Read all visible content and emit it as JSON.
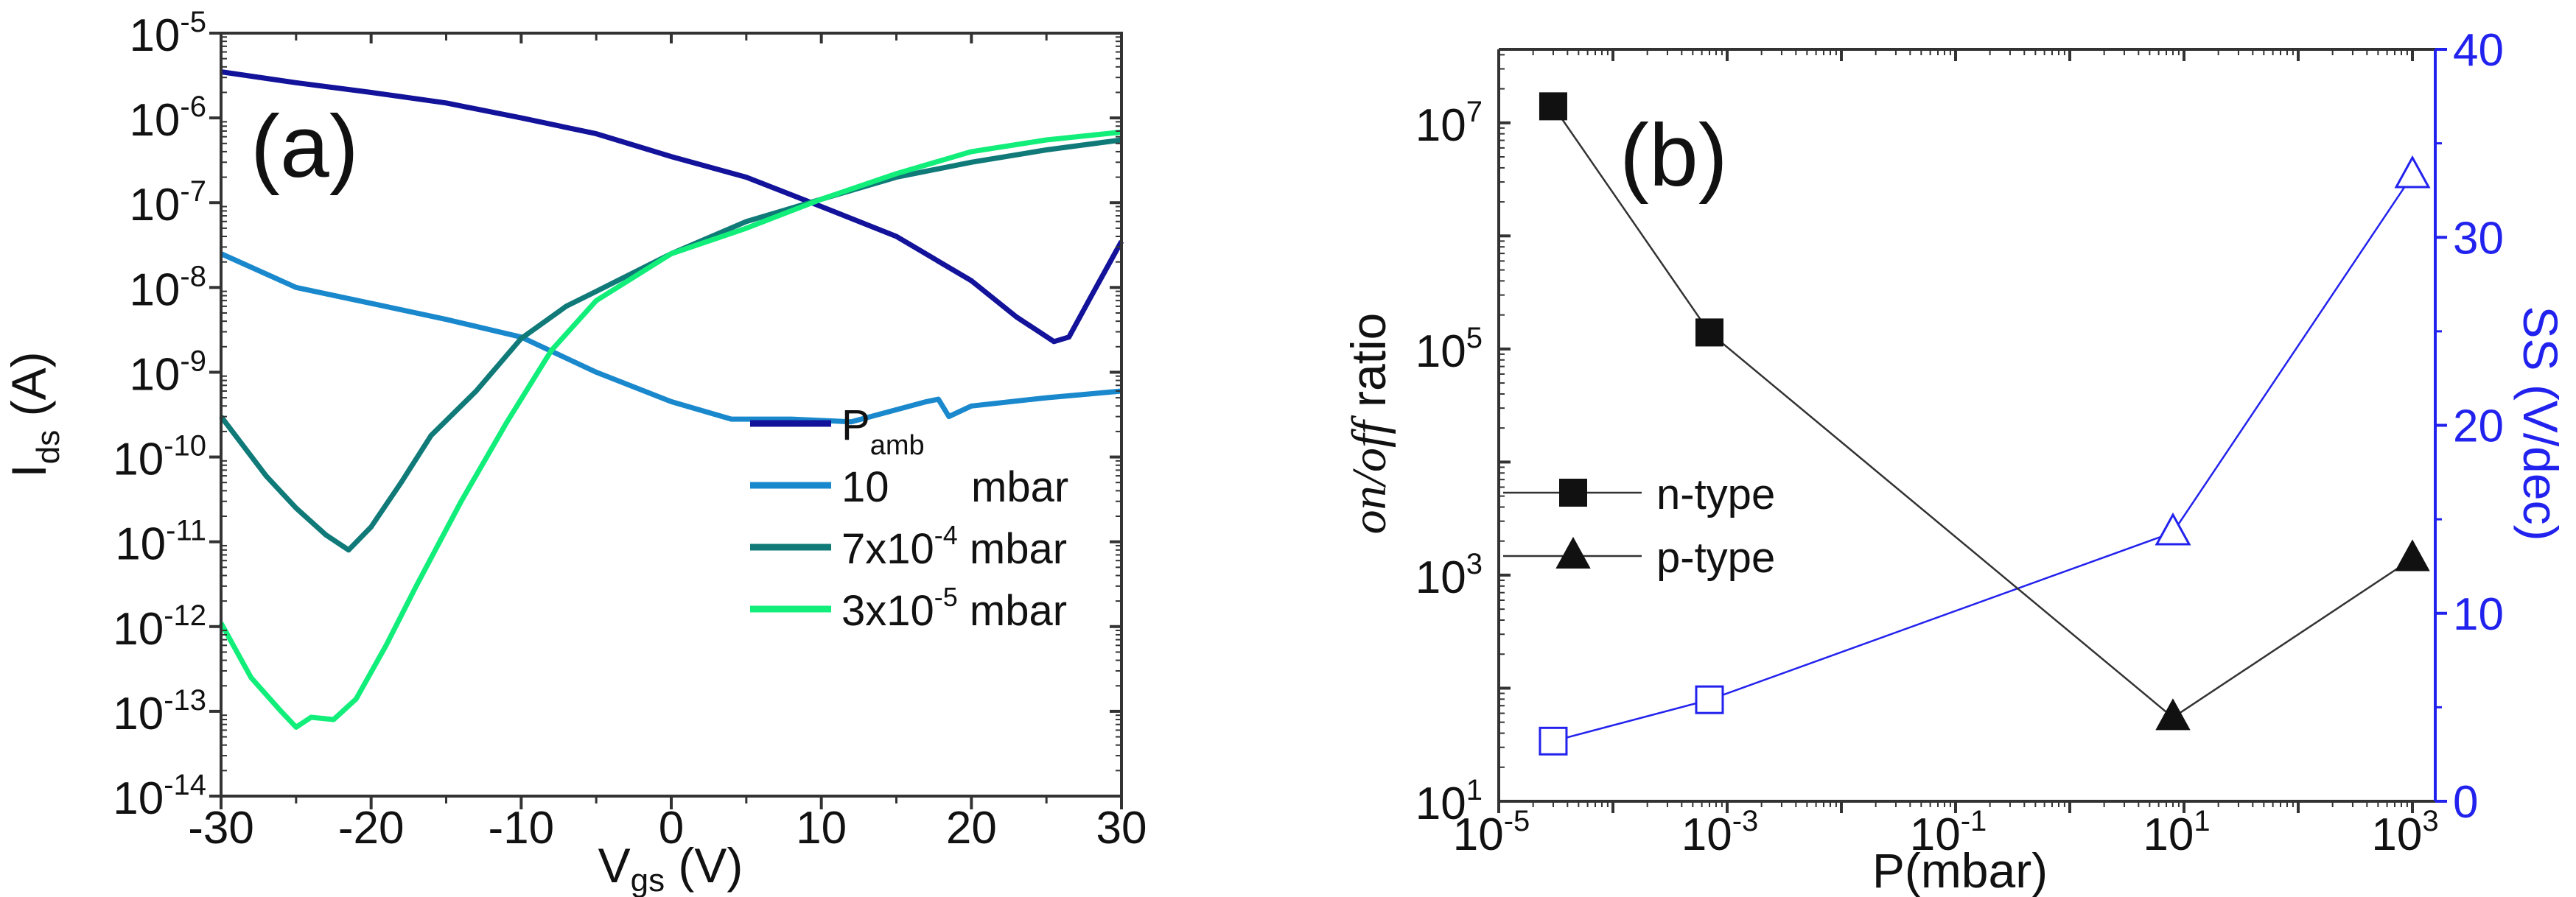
{
  "chart_data": [
    {
      "type": "line",
      "panel_label": "(a)",
      "xlabel": {
        "main": "V",
        "sub": "gs",
        "unit": " (V)"
      },
      "ylabel": {
        "main": "I",
        "sub": "ds",
        "unit": " (A)"
      },
      "xlim": [
        -30,
        30
      ],
      "ylim": [
        1e-14,
        1e-05
      ],
      "yscale": "log",
      "xticks": [
        "-30",
        "-20",
        "-10",
        "0",
        "10",
        "20",
        "30"
      ],
      "xtick_values": [
        -30,
        -20,
        -10,
        0,
        10,
        20,
        30
      ],
      "yticks": [
        {
          "base": "10",
          "exp": "-5"
        },
        {
          "base": "10",
          "exp": "-6"
        },
        {
          "base": "10",
          "exp": "-7"
        },
        {
          "base": "10",
          "exp": "-8"
        },
        {
          "base": "10",
          "exp": "-9"
        },
        {
          "base": "10",
          "exp": "-10"
        },
        {
          "base": "10",
          "exp": "-11"
        },
        {
          "base": "10",
          "exp": "-12"
        },
        {
          "base": "10",
          "exp": "-13"
        },
        {
          "base": "10",
          "exp": "-14"
        }
      ],
      "ytick_exponents": [
        -5,
        -6,
        -7,
        -8,
        -9,
        -10,
        -11,
        -12,
        -13,
        -14
      ],
      "legend_position": "bottom-right",
      "series": [
        {
          "name": "P",
          "name_sub": "amb",
          "name_rest": "",
          "color": "#12129a",
          "x": [
            -30,
            -25,
            -20,
            -15,
            -10,
            -5,
            0,
            5,
            10,
            15,
            20,
            23,
            25.5,
            26.5,
            28,
            30
          ],
          "y": [
            3.5e-06,
            2.6e-06,
            2e-06,
            1.5e-06,
            1e-06,
            6.5e-07,
            3.5e-07,
            2e-07,
            9e-08,
            4e-08,
            1.2e-08,
            4.5e-09,
            2.3e-09,
            2.6e-09,
            8e-09,
            3.5e-08
          ]
        },
        {
          "name": "10",
          "name_sub": "",
          "name_rest": "mbar",
          "color": "#1a88cc",
          "x": [
            -30,
            -25,
            -20,
            -15,
            -10,
            -5,
            0,
            4,
            8,
            12,
            17,
            17.8,
            18.5,
            20,
            25,
            30
          ],
          "y": [
            2.5e-08,
            1e-08,
            6.5e-09,
            4.2e-09,
            2.6e-09,
            1e-09,
            4.5e-10,
            2.8e-10,
            2.8e-10,
            2.6e-10,
            4.5e-10,
            4.8e-10,
            3e-10,
            4e-10,
            5e-10,
            6e-10
          ]
        },
        {
          "name": "7x10",
          "name_sup": "-4",
          "name_rest": "mbar",
          "color": "#0f7a78",
          "x": [
            -30,
            -27,
            -25,
            -23,
            -21.5,
            -20,
            -18,
            -16,
            -13,
            -10,
            -7,
            -5,
            0,
            5,
            10,
            15,
            20,
            25,
            30
          ],
          "y": [
            3e-10,
            6e-11,
            2.5e-11,
            1.2e-11,
            8e-12,
            1.5e-11,
            5e-11,
            1.8e-10,
            6e-10,
            2.5e-09,
            6e-09,
            9e-09,
            2.5e-08,
            6e-08,
            1.1e-07,
            2e-07,
            3e-07,
            4.2e-07,
            5.5e-07
          ]
        },
        {
          "name": "3x10",
          "name_sup": "-5",
          "name_rest": "mbar",
          "color": "#11ee7a",
          "x": [
            -30,
            -28,
            -26,
            -25,
            -24,
            -22.5,
            -21,
            -19,
            -17,
            -14,
            -11,
            -8,
            -5,
            0,
            5,
            10,
            15,
            20,
            25,
            30
          ],
          "y": [
            1.1e-12,
            2.5e-13,
            1e-13,
            6.5e-14,
            8.5e-14,
            8e-14,
            1.4e-13,
            6e-13,
            3e-12,
            3e-11,
            2.5e-10,
            1.8e-09,
            7e-09,
            2.5e-08,
            5e-08,
            1.1e-07,
            2.2e-07,
            4e-07,
            5.5e-07,
            6.8e-07
          ]
        }
      ]
    },
    {
      "type": "line",
      "panel_label": "(b)",
      "xlabel": "P(mbar)",
      "ylabel_left": {
        "italic": "on/off",
        "rest": " ratio"
      },
      "ylabel_right": "SS (V/dec)",
      "xscale": "log",
      "xlim_exp": [
        -5,
        3.2
      ],
      "ylim_left_exp": [
        1,
        7.65
      ],
      "ylim_right": [
        0,
        40
      ],
      "xticks": [
        {
          "base": "10",
          "exp": "-5"
        },
        {
          "base": "10",
          "exp": "-3"
        },
        {
          "base": "10",
          "exp": "-1"
        },
        {
          "base": "10",
          "exp": "1"
        },
        {
          "base": "10",
          "exp": "3"
        }
      ],
      "xtick_exponents": [
        -5,
        -3,
        -1,
        1,
        3
      ],
      "yticks_left": [
        {
          "base": "10",
          "exp": "7"
        },
        {
          "base": "10",
          "exp": "5"
        },
        {
          "base": "10",
          "exp": "3"
        },
        {
          "base": "10",
          "exp": "1"
        }
      ],
      "ytick_left_exponents": [
        7,
        5,
        3,
        1
      ],
      "yticks_right": [
        "40",
        "30",
        "20",
        "10",
        "0"
      ],
      "ytick_right_values": [
        40,
        30,
        20,
        10,
        0
      ],
      "legend_position": "center-left",
      "legend": [
        {
          "label": "n-type",
          "marker": "square"
        },
        {
          "label": "p-type",
          "marker": "triangle"
        }
      ],
      "onoff_series": {
        "color": "#111111",
        "points": [
          {
            "x": 3e-05,
            "y": 14000000.0,
            "marker": "square"
          },
          {
            "x": 0.0007,
            "y": 140000.0,
            "marker": "square"
          },
          {
            "x": 8,
            "y": 55,
            "marker": "triangle"
          },
          {
            "x": 1000,
            "y": 1400,
            "marker": "triangle"
          }
        ]
      },
      "ss_series": {
        "color": "#2222ee",
        "points": [
          {
            "x": 3e-05,
            "y": 3.2,
            "marker": "square-open"
          },
          {
            "x": 0.0007,
            "y": 5.4,
            "marker": "square-open"
          },
          {
            "x": 8,
            "y": 14.3,
            "marker": "triangle-open"
          },
          {
            "x": 1000,
            "y": 33.3,
            "marker": "triangle-open"
          }
        ]
      }
    }
  ]
}
